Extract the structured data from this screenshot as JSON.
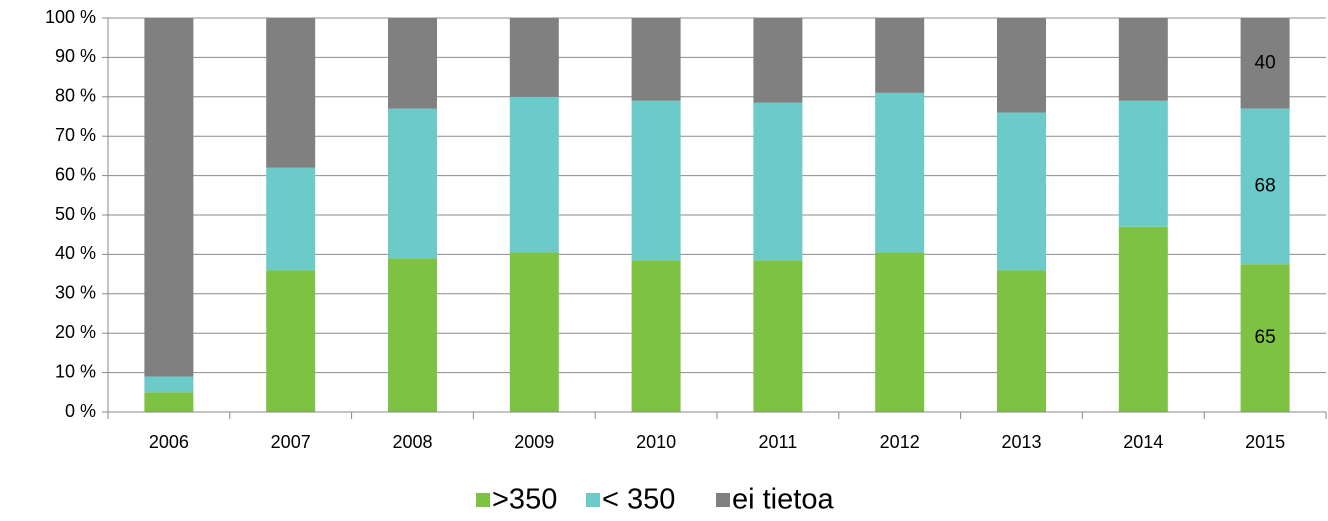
{
  "chart_data": {
    "type": "stacked_bar",
    "categories": [
      "2006",
      "2007",
      "2008",
      "2009",
      "2010",
      "2011",
      "2012",
      "2013",
      "2014",
      "2015"
    ],
    "series": [
      {
        "name": ">350",
        "color": "#7dc242",
        "label_color": "#000000",
        "values": [
          5,
          36,
          39,
          40.5,
          38.5,
          38.5,
          40.5,
          36,
          47,
          37.5
        ],
        "counts": [
          null,
          null,
          null,
          null,
          null,
          null,
          null,
          null,
          null,
          65
        ]
      },
      {
        "name": "< 350",
        "color": "#6ccac9",
        "label_color": "#000000",
        "values": [
          4,
          26,
          38,
          39.5,
          40.5,
          40,
          40.5,
          40,
          32,
          39.5
        ],
        "counts": [
          null,
          null,
          null,
          null,
          null,
          null,
          null,
          null,
          null,
          68
        ]
      },
      {
        "name": "ei tietoa",
        "color": "#808080",
        "label_color": "#ffffff",
        "values": [
          91,
          38,
          23,
          20,
          21,
          21.5,
          19,
          24,
          21,
          23
        ],
        "counts": [
          null,
          null,
          null,
          null,
          null,
          null,
          null,
          null,
          null,
          40
        ]
      }
    ],
    "ylim": [
      0,
      100
    ],
    "yticks": [
      {
        "value": 0,
        "label": "0 %"
      },
      {
        "value": 10,
        "label": "10 %"
      },
      {
        "value": 20,
        "label": "20 %"
      },
      {
        "value": 30,
        "label": "30 %"
      },
      {
        "value": 40,
        "label": "40 %"
      },
      {
        "value": 50,
        "label": "50 %"
      },
      {
        "value": 60,
        "label": "60 %"
      },
      {
        "value": 70,
        "label": "70 %"
      },
      {
        "value": 80,
        "label": "80 %"
      },
      {
        "value": 90,
        "label": "90 %"
      },
      {
        "value": 100,
        "label": "100 %"
      }
    ],
    "grid": true,
    "legend": "bottom"
  }
}
